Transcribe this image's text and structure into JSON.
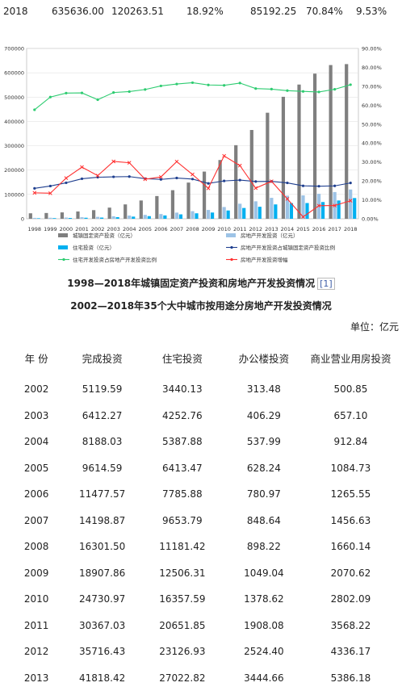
{
  "top_row": [
    "2018",
    "635636.00",
    "120263.51",
    "18.92%",
    "85192.25",
    "70.84%",
    "9.53%"
  ],
  "chart_data": {
    "type": "bar",
    "categories": [
      "1998",
      "1999",
      "2000",
      "2001",
      "2002",
      "2003",
      "2004",
      "2005",
      "2006",
      "2007",
      "2008",
      "2009",
      "2010",
      "2011",
      "2012",
      "2013",
      "2014",
      "2015",
      "2016",
      "2017",
      "2018"
    ],
    "left_axis": {
      "ylim": [
        0,
        700000
      ],
      "ticks": [
        "0",
        "100000",
        "200000",
        "300000",
        "400000",
        "500000",
        "600000",
        "700000"
      ]
    },
    "right_axis": {
      "ylim": [
        0,
        90
      ],
      "ticks": [
        "0.00%",
        "10.00%",
        "20.00%",
        "30.00%",
        "40.00%",
        "50.00%",
        "60.00%",
        "70.00%",
        "80.00%",
        "90.00%"
      ]
    },
    "series": [
      {
        "name": "城镇固定资产投资（亿元）",
        "kind": "bar",
        "axis": "left",
        "color": "#7f7f7f",
        "values": [
          22491,
          23732,
          26222,
          30001,
          35489,
          45812,
          59028,
          75096,
          93369,
          117464,
          148738,
          193920,
          241431,
          302396,
          364854,
          435747,
          501265,
          551590,
          596501,
          631684,
          635636
        ]
      },
      {
        "name": "房地产开发投资（亿元）",
        "kind": "bar",
        "axis": "left",
        "color": "#9dc3e6",
        "values": [
          3614,
          4103,
          4984,
          6344,
          7791,
          10154,
          13158,
          15909,
          19423,
          25289,
          31203,
          36232,
          48259,
          61796,
          71804,
          86013,
          95036,
          95979,
          102581,
          109799,
          120264
        ]
      },
      {
        "name": "住宅投资（亿元）",
        "kind": "bar",
        "axis": "left",
        "color": "#00b0f0",
        "values": [
          2082,
          2638,
          3312,
          4217,
          4902,
          6777,
          8837,
          10861,
          13638,
          18005,
          22441,
          25614,
          34026,
          44308,
          49374,
          58951,
          64352,
          64595,
          68704,
          75148,
          85192
        ]
      },
      {
        "name": "房地产开发投资占城镇固定资产投资比例",
        "kind": "line",
        "axis": "right",
        "color": "#1f3f8f",
        "values": [
          16.07,
          17.29,
          19.01,
          21.15,
          21.95,
          22.16,
          22.29,
          21.19,
          20.8,
          21.53,
          20.98,
          18.68,
          19.99,
          20.44,
          19.68,
          19.74,
          18.96,
          17.4,
          17.2,
          17.38,
          18.92
        ]
      },
      {
        "name": "住宅开发投资占房地产开发投资比例",
        "kind": "line",
        "axis": "right",
        "color": "#2ecc71",
        "values": [
          57.6,
          64.3,
          66.4,
          66.5,
          62.9,
          66.7,
          67.2,
          68.3,
          70.2,
          71.2,
          71.9,
          70.7,
          70.5,
          71.7,
          68.8,
          68.5,
          67.7,
          67.3,
          67.0,
          68.4,
          70.84
        ]
      },
      {
        "name": "房地产开发投资增幅",
        "kind": "line",
        "axis": "right",
        "color": "#ff3030",
        "values": [
          13.7,
          13.5,
          21.5,
          27.3,
          22.8,
          30.3,
          29.6,
          20.9,
          22.1,
          30.2,
          23.4,
          16.1,
          33.2,
          28.1,
          16.2,
          19.8,
          10.5,
          1.0,
          6.9,
          7.0,
          9.53
        ]
      }
    ]
  },
  "title1": "1998—2018年城镇固定资产投资和房地产开发投资情况",
  "title1_ref": "[1]",
  "title2": "2002—2018年35个大中城市按用途分房地产开发投资情况",
  "unit": "单位：亿元",
  "table": {
    "headers": [
      "年 份",
      "完成投资",
      "住宅投资",
      "办公楼投资",
      "商业营业用房投资"
    ],
    "rows": [
      [
        "2002",
        "5119.59",
        "3440.13",
        "313.48",
        "500.85"
      ],
      [
        "2003",
        "6412.27",
        "4252.76",
        "406.29",
        "657.10"
      ],
      [
        "2004",
        "8188.03",
        "5387.88",
        "537.99",
        "912.84"
      ],
      [
        "2005",
        "9614.59",
        "6413.47",
        "628.24",
        "1084.73"
      ],
      [
        "2006",
        "11477.57",
        "7785.88",
        "780.97",
        "1265.55"
      ],
      [
        "2007",
        "14198.87",
        "9653.79",
        "848.64",
        "1456.63"
      ],
      [
        "2008",
        "16301.50",
        "11181.42",
        "898.22",
        "1660.14"
      ],
      [
        "2009",
        "18907.86",
        "12506.31",
        "1049.04",
        "2070.62"
      ],
      [
        "2010",
        "24730.97",
        "16357.59",
        "1378.62",
        "2802.09"
      ],
      [
        "2011",
        "30367.03",
        "20651.85",
        "1908.08",
        "3568.22"
      ],
      [
        "2012",
        "35716.43",
        "23126.93",
        "2524.40",
        "4336.17"
      ],
      [
        "2013",
        "41818.42",
        "27022.82",
        "3444.66",
        "5386.18"
      ]
    ]
  }
}
